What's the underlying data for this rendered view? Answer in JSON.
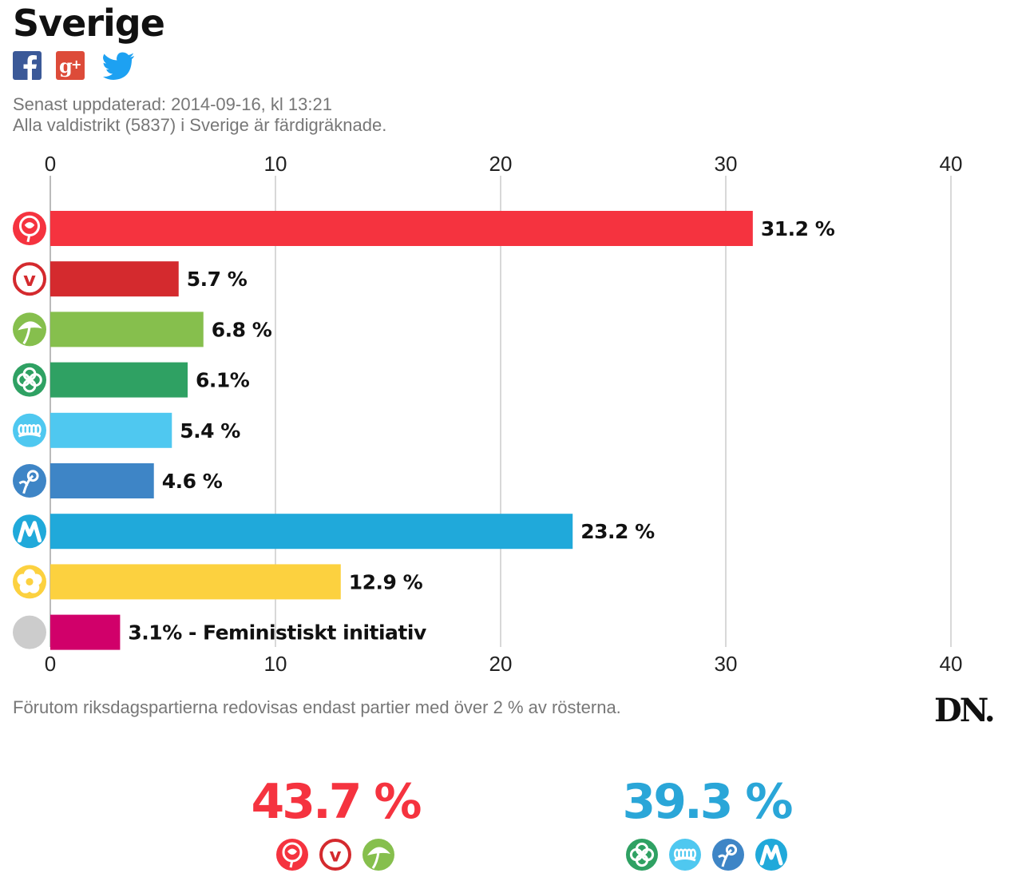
{
  "header": {
    "title": "Sverige",
    "updated_line": "Senast uppdaterad: 2014-09-16, kl 13:21",
    "districts_line": "Alla valdistrikt (5837) i Sverige är färdigräknade."
  },
  "share": [
    {
      "icon": "facebook-icon",
      "color": "#3b5998"
    },
    {
      "icon": "google-plus-icon",
      "color": "#dd4b39"
    },
    {
      "icon": "twitter-icon",
      "color": "#1da1f2"
    }
  ],
  "footnote": "Förutom riksdagspartierna redovisas endast partier med över 2 % av rösterna.",
  "brand": "DN.",
  "colors": {
    "S": "#f5333f",
    "V": "#d42a2e",
    "MP": "#86bf4d",
    "C": "#2fa163",
    "FP": "#4fc8f0",
    "KD": "#3e85c6",
    "M": "#20a9da",
    "SD": "#fcd13f",
    "FI": "#d1006a",
    "red_bloc": "#f5333f",
    "blue_bloc": "#2aa6d8"
  },
  "chart_data": {
    "type": "bar",
    "orientation": "horizontal",
    "categories": [
      "S",
      "V",
      "MP",
      "C",
      "FP",
      "KD",
      "M",
      "SD",
      "FI"
    ],
    "values": [
      31.2,
      5.7,
      6.8,
      6.1,
      5.4,
      4.6,
      23.2,
      12.9,
      3.1
    ],
    "value_labels": [
      "31.2 %",
      "5.7 %",
      "6.8 %",
      "6.1%",
      "5.4 %",
      "4.6 %",
      "23.2 %",
      "12.9 %",
      "3.1% - Feministiskt initiativ"
    ],
    "logo_icons": [
      "rose-logo-icon",
      "v-logo-icon",
      "dandelion-logo-icon",
      "clover-logo-icon",
      "cornflower-logo-icon",
      "flower-logo-icon",
      "m-logo-icon",
      "anemone-logo-icon",
      "grey-circle-icon"
    ],
    "xlim": [
      0,
      40
    ],
    "ticks": [
      0,
      10,
      20,
      30,
      40
    ],
    "tick_labels": [
      "0",
      "10",
      "20",
      "30",
      "40"
    ],
    "axis_position": "top-and-bottom",
    "grid": true,
    "title": "Sverige",
    "xlabel": "",
    "ylabel": ""
  },
  "blocs": [
    {
      "total": "43.7 %",
      "color": "#f5333f",
      "parties": [
        "S",
        "V",
        "MP"
      ]
    },
    {
      "total": "39.3 %",
      "color": "#2aa6d8",
      "parties": [
        "C",
        "FP",
        "KD",
        "M"
      ]
    }
  ]
}
